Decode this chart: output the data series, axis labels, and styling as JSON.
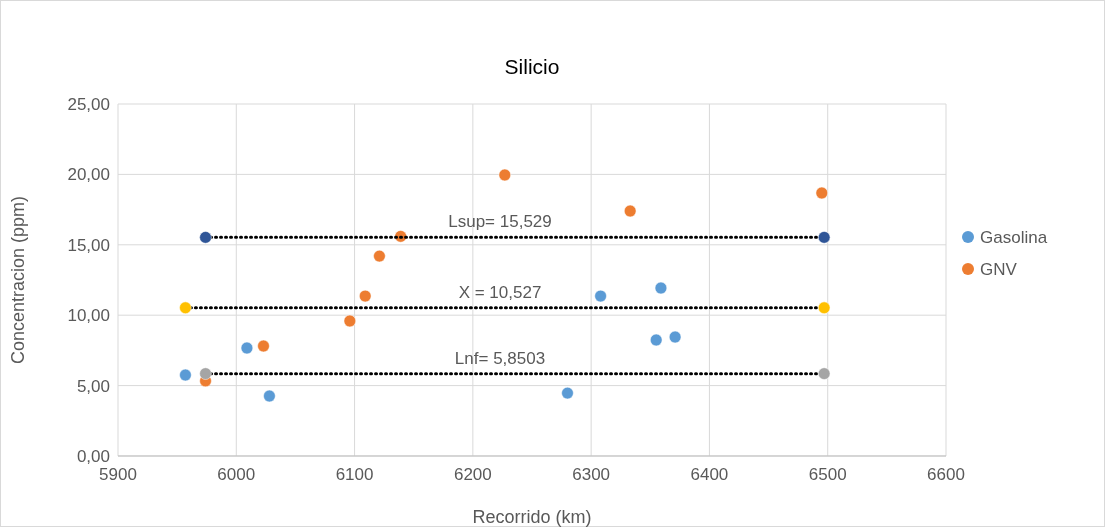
{
  "chart_data": {
    "type": "scatter",
    "title": "Silicio",
    "xlabel": "Recorrido (km)",
    "ylabel": "Concentracion (ppm)",
    "xlim": [
      5900,
      6600
    ],
    "xticks": [
      5900,
      6000,
      6100,
      6200,
      6300,
      6400,
      6500,
      6600
    ],
    "ylim": [
      0,
      25
    ],
    "yticks": [
      {
        "value": 0,
        "label": "0,00"
      },
      {
        "value": 5,
        "label": "5,00"
      },
      {
        "value": 10,
        "label": "10,00"
      },
      {
        "value": 15,
        "label": "15,00"
      },
      {
        "value": 20,
        "label": "20,00"
      },
      {
        "value": 25,
        "label": "25,00"
      }
    ],
    "grid": true,
    "legend": "right",
    "marker": "circle",
    "series": [
      {
        "name": "Gasolina",
        "color": "#5b9bd5",
        "x": [
          5957,
          6009,
          6028,
          6280,
          6308,
          6355,
          6371,
          6359
        ],
        "values": [
          5.75,
          7.67,
          4.26,
          4.47,
          11.36,
          8.24,
          8.45,
          11.93
        ]
      },
      {
        "name": "GNV",
        "color": "#ed7d31",
        "x": [
          5974,
          6023,
          6096,
          6109,
          6121,
          6139,
          6227,
          6333,
          6495
        ],
        "values": [
          5.33,
          7.81,
          9.59,
          11.36,
          14.2,
          15.6,
          19.96,
          17.4,
          18.68
        ]
      },
      {
        "type": "line",
        "color": "#2f5597",
        "line_style": "dotted",
        "x": [
          5974,
          6497
        ],
        "values": [
          15.529,
          15.529
        ]
      },
      {
        "type": "line",
        "color": "#ffc000",
        "line_style": "dotted",
        "x": [
          5957,
          6497
        ],
        "values": [
          10.527,
          10.527
        ]
      },
      {
        "type": "line",
        "color": "#a5a5a5",
        "line_style": "dotted",
        "x": [
          5974,
          6497
        ],
        "values": [
          5.8503,
          5.8503
        ]
      }
    ],
    "annotations": [
      {
        "text": "Lsup= 15,529",
        "y": 15.529
      },
      {
        "text": "X = 10,527",
        "y": 10.527
      },
      {
        "text": "Lnf= 5,8503",
        "y": 5.8503
      }
    ]
  }
}
